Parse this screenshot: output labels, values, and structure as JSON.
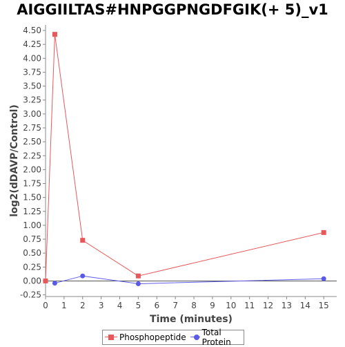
{
  "chart_data": {
    "type": "line",
    "title": "AIGGIILTAS#HNPGGPNGDFGIK(+ 5)_v1",
    "xlabel": "Time (minutes)",
    "ylabel": "log2(dDAVP/Control)",
    "xlim": [
      0,
      15.7
    ],
    "ylim": [
      -0.28,
      4.6
    ],
    "x_ticks": [
      0,
      1,
      2,
      3,
      4,
      5,
      6,
      7,
      8,
      9,
      10,
      11,
      12,
      13,
      14,
      15
    ],
    "y_ticks": [
      -0.25,
      0,
      0.25,
      0.5,
      0.75,
      1,
      1.25,
      1.5,
      1.75,
      2,
      2.25,
      2.5,
      2.75,
      3,
      3.25,
      3.5,
      3.75,
      4,
      4.25,
      4.5
    ],
    "y_tick_labels": [
      "-0.25",
      "0.00",
      "0.25",
      "0.50",
      "0.75",
      "1.00",
      "1.25",
      "1.50",
      "1.75",
      "2.00",
      "2.25",
      "2.50",
      "2.75",
      "3.00",
      "3.25",
      "3.50",
      "3.75",
      "4.00",
      "4.25",
      "4.50"
    ],
    "grid": false,
    "legend_position": "bottom",
    "series": [
      {
        "name": "Phosphopeptide",
        "color": "#e8585a",
        "marker": "square",
        "x": [
          0,
          0.5,
          2,
          5,
          15
        ],
        "y": [
          0.0,
          4.43,
          0.73,
          0.09,
          0.87
        ]
      },
      {
        "name": "Total Protein",
        "color": "#5a5ae8",
        "marker": "circle",
        "x": [
          0.5,
          2,
          5,
          15
        ],
        "y": [
          -0.04,
          0.09,
          -0.05,
          0.04
        ]
      }
    ]
  }
}
